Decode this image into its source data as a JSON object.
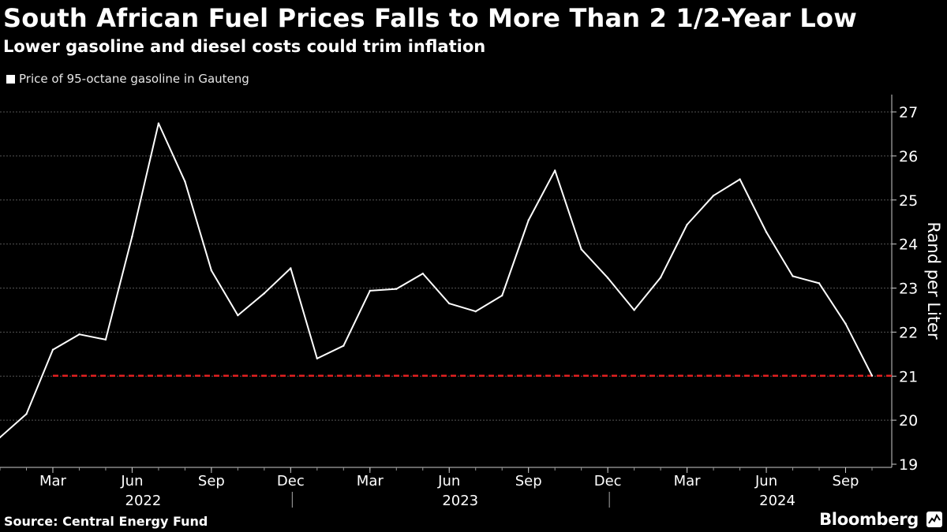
{
  "header": {
    "title": "South African Fuel Prices Falls to More Than 2 1/2-Year Low",
    "subtitle": "Lower gasoline and diesel costs could trim inflation"
  },
  "footer": {
    "source": "Source: Central Energy Fund",
    "brand": "Bloomberg"
  },
  "colors": {
    "background": "#000000",
    "line": "#ffffff",
    "reference_line": "#e02020",
    "grid": "#555555"
  },
  "chart_data": {
    "type": "line",
    "title": "South African Fuel Prices Falls to More Than 2 1/2-Year Low",
    "subtitle": "Lower gasoline and diesel costs could trim inflation",
    "ylabel": "Rand per Liter",
    "xlabel": "",
    "ylim": [
      19,
      27.4
    ],
    "yticks": [
      19,
      20,
      21,
      22,
      23,
      24,
      25,
      26,
      27
    ],
    "grid": true,
    "legend_position": "top-left",
    "x": [
      "2022-01",
      "2022-02",
      "2022-03",
      "2022-04",
      "2022-05",
      "2022-06",
      "2022-07",
      "2022-08",
      "2022-09",
      "2022-10",
      "2022-11",
      "2022-12",
      "2023-01",
      "2023-02",
      "2023-03",
      "2023-04",
      "2023-05",
      "2023-06",
      "2023-07",
      "2023-08",
      "2023-09",
      "2023-10",
      "2023-11",
      "2023-12",
      "2024-01",
      "2024-02",
      "2024-03",
      "2024-04",
      "2024-05",
      "2024-06",
      "2024-07",
      "2024-08",
      "2024-09",
      "2024-10"
    ],
    "series": [
      {
        "name": "Price of 95-octane gasoline in Gauteng",
        "values": [
          19.61,
          20.14,
          21.6,
          21.95,
          21.83,
          24.17,
          26.74,
          25.42,
          23.4,
          22.38,
          22.88,
          23.45,
          21.4,
          21.69,
          22.94,
          22.98,
          23.33,
          22.65,
          22.47,
          22.83,
          24.54,
          25.67,
          23.88,
          23.23,
          22.5,
          23.24,
          24.44,
          25.1,
          25.47,
          24.27,
          23.27,
          23.11,
          22.19,
          21.01
        ]
      }
    ],
    "reference_line": {
      "value": 21.01,
      "style": "dashed",
      "from": "2022-03",
      "to": "2024-10"
    },
    "x_tick_labels": [
      {
        "label": "Mar",
        "date": "2022-03"
      },
      {
        "label": "Jun",
        "date": "2022-06"
      },
      {
        "label": "Sep",
        "date": "2022-09"
      },
      {
        "label": "Dec",
        "date": "2022-12"
      },
      {
        "label": "Mar",
        "date": "2023-03"
      },
      {
        "label": "Jun",
        "date": "2023-06"
      },
      {
        "label": "Sep",
        "date": "2023-09"
      },
      {
        "label": "Dec",
        "date": "2023-12"
      },
      {
        "label": "Mar",
        "date": "2024-03"
      },
      {
        "label": "Jun",
        "date": "2024-06"
      },
      {
        "label": "Sep",
        "date": "2024-09"
      }
    ],
    "year_labels": [
      {
        "label": "2022",
        "date": "2022-06"
      },
      {
        "label": "2023",
        "date": "2023-06"
      },
      {
        "label": "2024",
        "date": "2024-06"
      }
    ]
  }
}
